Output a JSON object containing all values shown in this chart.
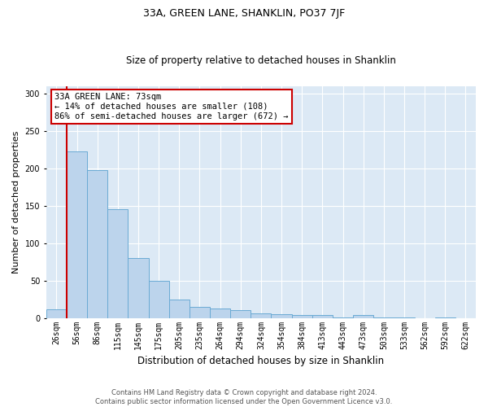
{
  "title": "33A, GREEN LANE, SHANKLIN, PO37 7JF",
  "subtitle": "Size of property relative to detached houses in Shanklin",
  "xlabel": "Distribution of detached houses by size in Shanklin",
  "ylabel": "Number of detached properties",
  "bin_labels": [
    "26sqm",
    "56sqm",
    "86sqm",
    "115sqm",
    "145sqm",
    "175sqm",
    "205sqm",
    "235sqm",
    "264sqm",
    "294sqm",
    "324sqm",
    "354sqm",
    "384sqm",
    "413sqm",
    "443sqm",
    "473sqm",
    "503sqm",
    "533sqm",
    "562sqm",
    "592sqm",
    "622sqm"
  ],
  "bar_heights": [
    12,
    223,
    198,
    145,
    80,
    50,
    25,
    15,
    13,
    10,
    6,
    5,
    4,
    4,
    1,
    4,
    1,
    1,
    0,
    1,
    0
  ],
  "bar_color": "#bcd4ec",
  "bar_edgecolor": "#6aaad4",
  "annotation_title": "33A GREEN LANE: 73sqm",
  "annotation_line1": "← 14% of detached houses are smaller (108)",
  "annotation_line2": "86% of semi-detached houses are larger (672) →",
  "annotation_box_color": "#ffffff",
  "annotation_box_edgecolor": "#cc0000",
  "vline_color": "#cc0000",
  "vline_x_index": 1,
  "ylim": [
    0,
    310
  ],
  "yticks": [
    0,
    50,
    100,
    150,
    200,
    250,
    300
  ],
  "background_color": "#dce9f5",
  "title_fontsize": 9,
  "subtitle_fontsize": 8.5,
  "ylabel_fontsize": 8,
  "xlabel_fontsize": 8.5,
  "tick_fontsize": 7,
  "footer_line1": "Contains HM Land Registry data © Crown copyright and database right 2024.",
  "footer_line2": "Contains public sector information licensed under the Open Government Licence v3.0."
}
